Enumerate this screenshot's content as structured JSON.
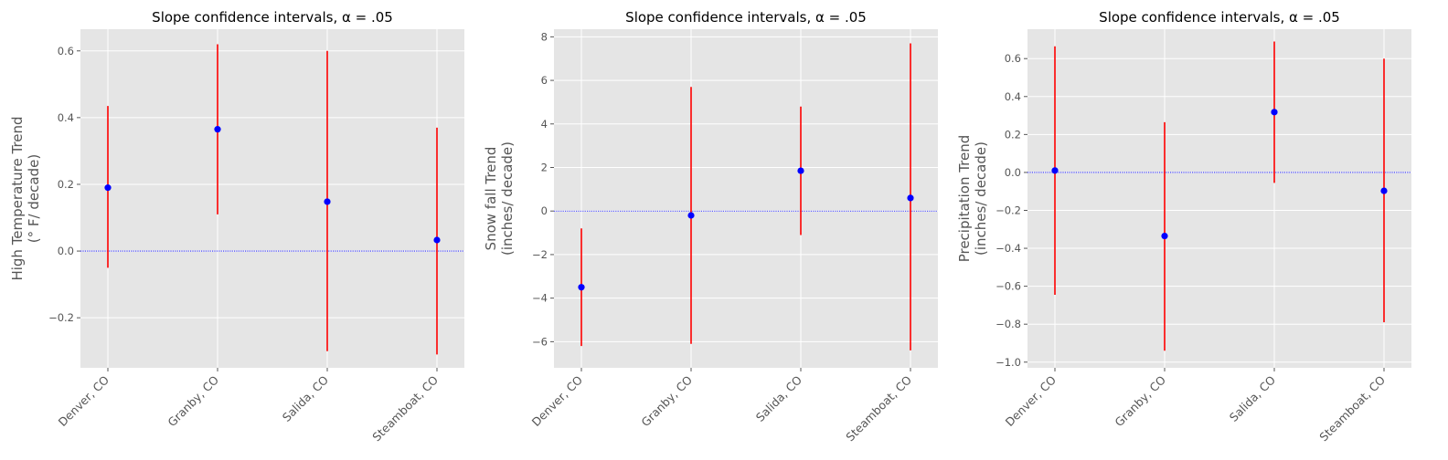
{
  "chart_data": [
    {
      "type": "scatter",
      "title": "Slope confidence intervals, α = .05",
      "xlabel": "",
      "ylabel": [
        "High Temperature Trend",
        "(° F/ decade)"
      ],
      "categories": [
        "Denver, CO",
        "Granby, CO",
        "Salida, CO",
        "Steamboat, CO"
      ],
      "values": [
        0.19,
        0.365,
        0.148,
        0.033
      ],
      "ci_low": [
        -0.05,
        0.11,
        -0.3,
        -0.31
      ],
      "ci_high": [
        0.435,
        0.62,
        0.6,
        0.37
      ],
      "ylim": [
        -0.35,
        0.665
      ],
      "yticks": [
        -0.2,
        0.0,
        0.2,
        0.4,
        0.6
      ],
      "ytick_labels": [
        "−0.2",
        "0.0",
        "0.2",
        "0.4",
        "0.6"
      ],
      "reference_line": 0,
      "grid": true
    },
    {
      "type": "scatter",
      "title": "Slope confidence intervals, α = .05",
      "xlabel": "",
      "ylabel": [
        "Snow fall Trend",
        "(inches/ decade)"
      ],
      "categories": [
        "Denver, CO",
        "Granby, CO",
        "Salida, CO",
        "Steamboat, CO"
      ],
      "values": [
        -3.5,
        -0.2,
        1.85,
        0.6
      ],
      "ci_low": [
        -6.2,
        -6.1,
        -1.1,
        -6.4
      ],
      "ci_high": [
        -0.8,
        5.7,
        4.8,
        7.7
      ],
      "ylim": [
        -7.2,
        8.35
      ],
      "yticks": [
        -6,
        -4,
        -2,
        0,
        2,
        4,
        6,
        8
      ],
      "ytick_labels": [
        "−6",
        "−4",
        "−2",
        "0",
        "2",
        "4",
        "6",
        "8"
      ],
      "reference_line": 0,
      "grid": true
    },
    {
      "type": "scatter",
      "title": "Slope confidence intervals, α = .05",
      "xlabel": "",
      "ylabel": [
        "Precipitation Trend",
        "(inches/ decade)"
      ],
      "categories": [
        "Denver, CO",
        "Granby, CO",
        "Salida, CO",
        "Steamboat, CO"
      ],
      "values": [
        0.01,
        -0.335,
        0.318,
        -0.097
      ],
      "ci_low": [
        -0.645,
        -0.94,
        -0.055,
        -0.79
      ],
      "ci_high": [
        0.665,
        0.265,
        0.69,
        0.6
      ],
      "ylim": [
        -1.03,
        0.755
      ],
      "yticks": [
        -1.0,
        -0.8,
        -0.6,
        -0.4,
        -0.2,
        0.0,
        0.2,
        0.4,
        0.6
      ],
      "ytick_labels": [
        "−1.0",
        "−0.8",
        "−0.6",
        "−0.4",
        "−0.2",
        "0.0",
        "0.2",
        "0.4",
        "0.6"
      ],
      "reference_line": 0,
      "grid": true
    }
  ],
  "colors": {
    "axes_background": "#e5e5e5",
    "grid": "#ffffff",
    "interval": "#ff0000",
    "point": "#0000ff",
    "reference_line": "#0000ff"
  }
}
